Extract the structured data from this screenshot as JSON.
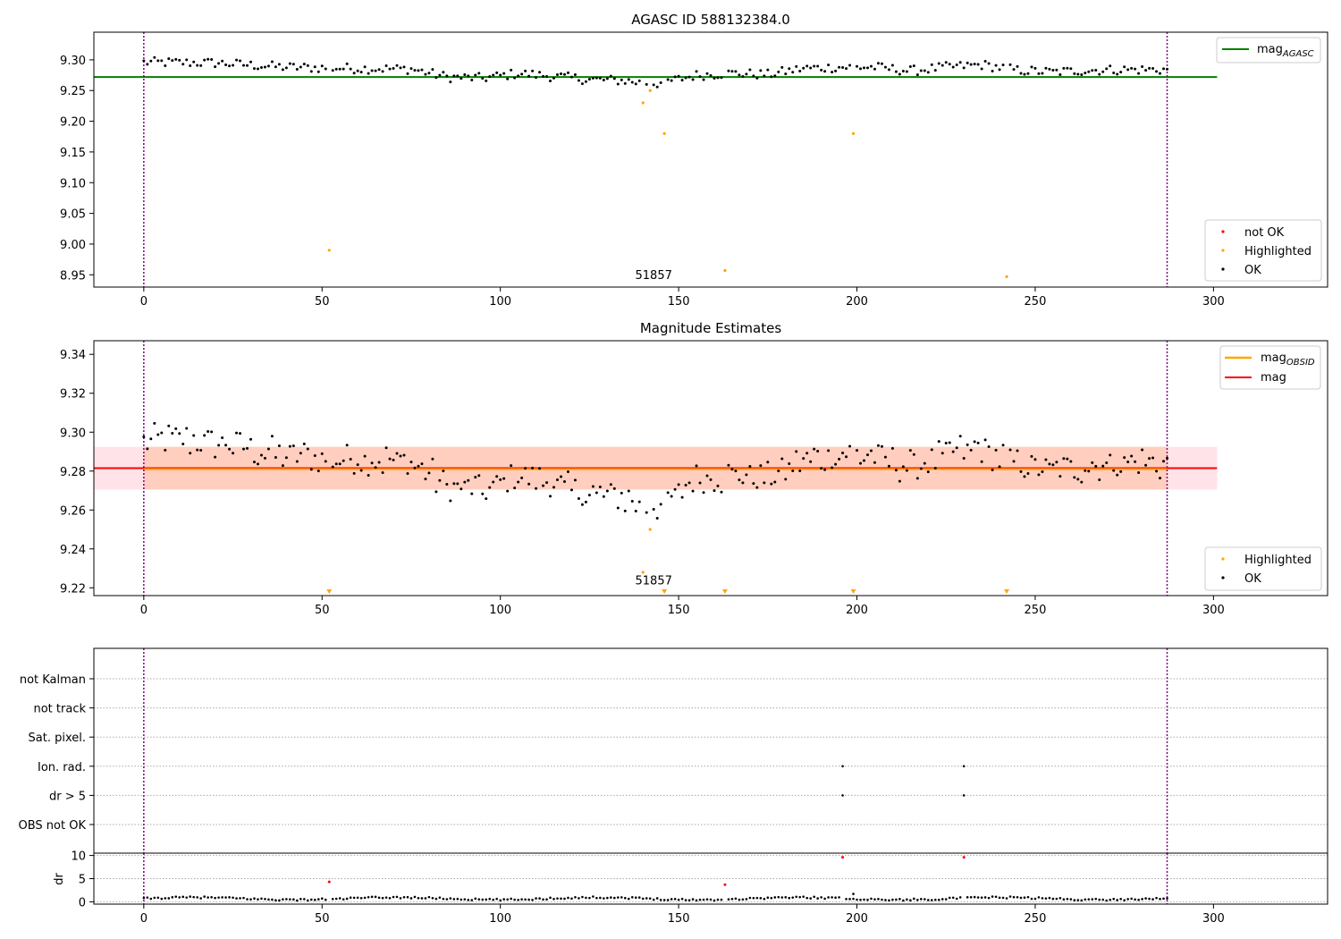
{
  "chart_data": [
    {
      "type": "scatter",
      "title": "AGASC ID 588132384.0",
      "xlim": [
        -14,
        332
      ],
      "ylim": [
        8.93,
        9.345
      ],
      "x_ticks": [
        0,
        50,
        100,
        150,
        200,
        250,
        300
      ],
      "y_ticks": [
        8.95,
        9.0,
        9.05,
        9.1,
        9.15,
        9.2,
        9.25,
        9.3
      ],
      "y_tick_labels": [
        "8.95",
        "9.00",
        "9.05",
        "9.10",
        "9.15",
        "9.20",
        "9.25",
        "9.30"
      ],
      "vlines": [
        0,
        287
      ],
      "annotation": {
        "text": "51857",
        "x": 143,
        "y": 8.93
      },
      "hline": {
        "name": "mag_AGASC",
        "y": 9.272,
        "color": "#008000"
      },
      "legend_top": {
        "label": "mag",
        "subscript": "AGASC"
      },
      "legend_bottom": [
        {
          "label": "not OK",
          "color": "#ff0000"
        },
        {
          "label": "Highlighted",
          "color": "#ffa500"
        },
        {
          "label": "OK",
          "color": "#000000"
        }
      ],
      "highlighted": {
        "x": [
          52,
          140,
          142,
          146,
          163,
          199,
          242
        ],
        "y": [
          8.99,
          9.23,
          9.25,
          9.18,
          8.957,
          9.18,
          8.947
        ]
      },
      "ok_anchors": {
        "x": [
          0,
          20,
          40,
          60,
          75,
          85,
          95,
          105,
          115,
          125,
          135,
          140,
          145,
          155,
          165,
          175,
          185,
          195,
          205,
          215,
          225,
          235,
          245,
          255,
          265,
          275,
          287
        ],
        "y": [
          9.296,
          9.295,
          9.288,
          9.286,
          9.285,
          9.272,
          9.27,
          9.278,
          9.273,
          9.268,
          9.266,
          9.262,
          9.262,
          9.275,
          9.278,
          9.276,
          9.286,
          9.288,
          9.288,
          9.282,
          9.288,
          9.292,
          9.283,
          9.28,
          9.283,
          9.284,
          9.284
        ]
      }
    },
    {
      "type": "scatter",
      "title": "Magnitude Estimates",
      "xlim": [
        -14,
        332
      ],
      "ylim": [
        9.216,
        9.347
      ],
      "x_ticks": [
        0,
        50,
        100,
        150,
        200,
        250,
        300
      ],
      "y_ticks": [
        9.22,
        9.24,
        9.26,
        9.28,
        9.3,
        9.32,
        9.34
      ],
      "y_tick_labels": [
        "9.22",
        "9.24",
        "9.26",
        "9.28",
        "9.30",
        "9.32",
        "9.34"
      ],
      "vlines": [
        0,
        287
      ],
      "annotation": {
        "text": "51857",
        "x": 143,
        "y": 9.219
      },
      "mag": 9.2815,
      "band": [
        9.2705,
        9.2925
      ],
      "mag_obsid": 9.281,
      "legend_top": [
        {
          "label": "mag",
          "subscript": "OBSID",
          "color": "#ffa500"
        },
        {
          "label": "mag",
          "subscript": "",
          "color": "#ff0000"
        }
      ],
      "legend_bottom": [
        {
          "label": "Highlighted",
          "color": "#ffa500"
        },
        {
          "label": "OK",
          "color": "#000000"
        }
      ],
      "highlighted": {
        "x": [
          140,
          142
        ],
        "y": [
          9.228,
          9.25
        ]
      },
      "below_range_markers_x": [
        52,
        146,
        163,
        199,
        242
      ]
    },
    {
      "type": "scatter",
      "title": "",
      "xlim": [
        -14,
        332
      ],
      "flag_rows": [
        "not Kalman",
        "not track",
        "Sat. pixel.",
        "Ion. rad.",
        "dr > 5",
        "OBS not OK"
      ],
      "flag_points": [
        {
          "row": "Ion. rad.",
          "x": [
            196,
            230
          ]
        },
        {
          "row": "dr > 5",
          "x": [
            196,
            230
          ]
        }
      ],
      "vlines": [
        0,
        287
      ]
    },
    {
      "type": "scatter",
      "title": "",
      "ylabel": "dr",
      "xlim": [
        -14,
        332
      ],
      "ylim": [
        -0.5,
        10.5
      ],
      "x_ticks": [
        0,
        50,
        100,
        150,
        200,
        250,
        300
      ],
      "y_ticks": [
        0,
        5,
        10
      ],
      "y_tick_labels": [
        "0",
        "5",
        "10"
      ],
      "red_points": {
        "x": [
          52,
          163,
          196,
          230
        ],
        "y": [
          4.3,
          3.7,
          9.6,
          9.6
        ]
      },
      "extra_black": {
        "x": [
          199
        ],
        "y": [
          1.7
        ]
      },
      "vlines": [
        0,
        287
      ]
    }
  ]
}
